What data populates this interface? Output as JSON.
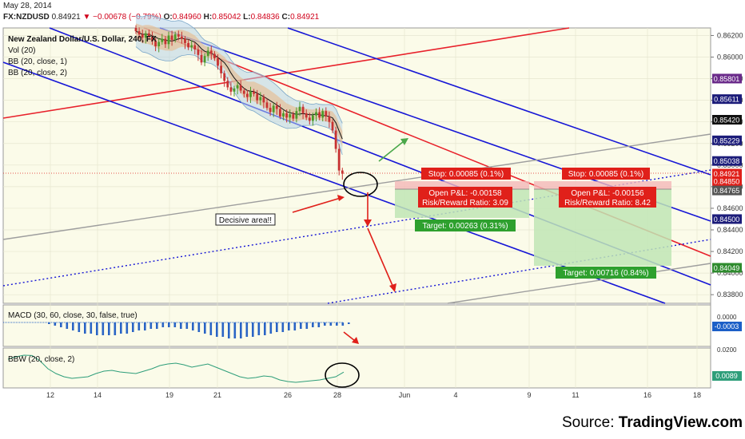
{
  "header": {
    "date": "May 28, 2014",
    "symbol": "FX:NZDUSD",
    "price": "0.84921",
    "change": "▼ −0.00678 (−0.79%)",
    "o_label": "O:",
    "o": "0.84960",
    "h_label": "H:",
    "h": "0.85042",
    "l_label": "L:",
    "l": "0.84836",
    "c_label": "C:",
    "c": "0.84921"
  },
  "labels": {
    "title": "New Zealand Dollar/U.S. Dollar, 240, FX",
    "vol": "Vol (20)",
    "bb1": "BB (20, close, 1)",
    "bb2": "BB (20, close, 2)",
    "macd": "MACD (30, 60, close, 30, false, true)",
    "bbw": "BBW (20, close, 2)",
    "decisive": "Decisive area!!"
  },
  "trades": [
    {
      "stop": "Stop: 0.00085 (0.1%)",
      "pnl": "Open P&L: -0.00158",
      "rr": "Risk/Reward Ratio: 3.09",
      "target": "Target: 0.00263 (0.31%)",
      "entry": 0.84836,
      "stop_price": 0.84921,
      "target_price": 0.84573
    },
    {
      "stop": "Stop: 0.00085 (0.1%)",
      "pnl": "Open P&L: -0.00156",
      "rr": "Risk/Reward Ratio: 8.42",
      "target": "Target: 0.00716 (0.84%)",
      "entry": 0.84765,
      "stop_price": 0.8485,
      "target_price": 0.84049
    }
  ],
  "source": {
    "prefix": "Source: ",
    "brand": "TradingView.com"
  },
  "colors": {
    "red": "#e8212b",
    "blue": "#1616d6",
    "gray": "#9e9e9e",
    "green": "#3aa63a",
    "macd": "#2a64c5",
    "bbw": "#2e9e7a",
    "stop": "#e0201a",
    "target": "#2ea02e"
  },
  "chart_data": {
    "type": "candlestick",
    "x_ticks": [
      "12",
      "14",
      "19",
      "21",
      "26",
      "28",
      "Jun",
      "4",
      "9",
      "11",
      "16",
      "18"
    ],
    "y_ticks": [
      "0.86200",
      "0.86000",
      "0.85800",
      "0.85600",
      "0.85400",
      "0.85200",
      "0.85000",
      "0.84800",
      "0.84600",
      "0.84400",
      "0.84200",
      "0.84000",
      "0.83800"
    ],
    "ylim": [
      0.8372,
      0.8627
    ],
    "price_tags": [
      {
        "text": "0.85801",
        "value": 0.85801,
        "color": "#6a2a8a"
      },
      {
        "text": "0.85611",
        "value": 0.85611,
        "color": "#1c1c7a"
      },
      {
        "text": "0.85420",
        "value": 0.8542,
        "color": "#111111"
      },
      {
        "text": "0.85229",
        "value": 0.85229,
        "color": "#1c1c7a"
      },
      {
        "text": "0.85038",
        "value": 0.85038,
        "color": "#1c1c7a"
      },
      {
        "text": "0.84921",
        "value": 0.84921,
        "color": "#e0201a"
      },
      {
        "text": "0.84850",
        "value": 0.8485,
        "color": "#e0201a"
      },
      {
        "text": "0.84765",
        "value": 0.84765,
        "color": "#555555"
      },
      {
        "text": "0.84500",
        "value": 0.845,
        "color": "#1c1c7a"
      },
      {
        "text": "0.84049",
        "value": 0.84049,
        "color": "#2e8b2e"
      }
    ],
    "candles_close": [
      0.8624,
      0.8621,
      0.8618,
      0.8622,
      0.8619,
      0.8615,
      0.861,
      0.8614,
      0.8617,
      0.8612,
      0.862,
      0.8616,
      0.8621,
      0.8619,
      0.8617,
      0.8613,
      0.8609,
      0.8611,
      0.8607,
      0.8602,
      0.8595,
      0.8601,
      0.8606,
      0.8603,
      0.8599,
      0.8592,
      0.8585,
      0.8578,
      0.8572,
      0.8568,
      0.8571,
      0.8574,
      0.8569,
      0.8566,
      0.8563,
      0.8568,
      0.8566,
      0.856,
      0.8563,
      0.8558,
      0.8553,
      0.8549,
      0.8555,
      0.8552,
      0.8545,
      0.8548,
      0.8544,
      0.8547,
      0.8543,
      0.855,
      0.8554,
      0.8548,
      0.8544,
      0.8541,
      0.8546,
      0.8549,
      0.8544,
      0.855,
      0.8545,
      0.854,
      0.8532,
      0.8515,
      0.8495,
      0.8492
    ],
    "macd_ticks": [
      "0.0000",
      "-0.0003"
    ],
    "bbw_ticks": [
      "0.0200",
      "0.0089"
    ],
    "macd_values": [
      -0.0001,
      -0.0002,
      -0.0003,
      -0.0004,
      -0.0005,
      -0.0006,
      -0.0007,
      -0.0007,
      -0.0008,
      -0.0008,
      -0.0008,
      -0.0008,
      -0.0007,
      -0.0007,
      -0.0006,
      -0.0005,
      -0.0005,
      -0.0004,
      -0.0004,
      -0.0003,
      -0.0003,
      -0.0003,
      -0.0004,
      -0.0004,
      -0.0005,
      -0.0006,
      -0.0007,
      -0.0008,
      -0.0009,
      -0.0009,
      -0.001,
      -0.001,
      -0.001,
      -0.0009,
      -0.0009,
      -0.0008,
      -0.0008,
      -0.0007,
      -0.0006,
      -0.0006,
      -0.0005,
      -0.0005,
      -0.0004,
      -0.0004,
      -0.0003,
      -0.0003,
      -0.0002,
      -0.0002,
      -0.0002,
      -0.0002,
      -0.0001
    ],
    "bbw_values": [
      0.017,
      0.0185,
      0.0195,
      0.0193,
      0.016,
      0.011,
      0.008,
      0.006,
      0.005,
      0.0055,
      0.006,
      0.008,
      0.0095,
      0.01,
      0.009,
      0.0085,
      0.008,
      0.0095,
      0.011,
      0.013,
      0.014,
      0.0145,
      0.0135,
      0.012,
      0.013,
      0.014,
      0.012,
      0.01,
      0.008,
      0.006,
      0.005,
      0.0055,
      0.0065,
      0.006,
      0.004,
      0.003,
      0.0025,
      0.003,
      0.0035,
      0.004,
      0.005,
      0.006,
      0.0089
    ]
  }
}
